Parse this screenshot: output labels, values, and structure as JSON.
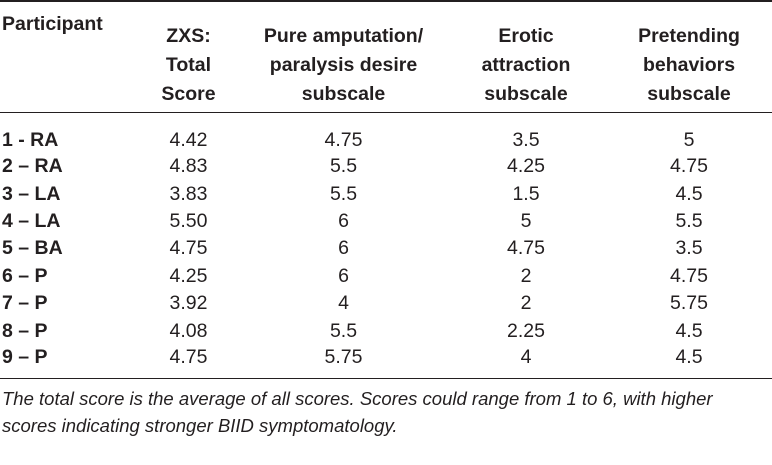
{
  "table": {
    "headers": [
      [
        "Participant"
      ],
      [
        "ZXS:",
        "Total",
        "Score"
      ],
      [
        "Pure amputation/",
        "paralysis desire",
        "subscale"
      ],
      [
        "Erotic",
        "attraction",
        "subscale"
      ],
      [
        "Pretending",
        "behaviors",
        "subscale"
      ]
    ],
    "rows": [
      {
        "participant": "1 - RA",
        "total": "4.42",
        "amputation": "4.75",
        "erotic": "3.5",
        "pretending": "5"
      },
      {
        "participant": "2 – RA",
        "total": "4.83",
        "amputation": "5.5",
        "erotic": "4.25",
        "pretending": "4.75"
      },
      {
        "participant": "3 – LA",
        "total": "3.83",
        "amputation": "5.5",
        "erotic": "1.5",
        "pretending": "4.5"
      },
      {
        "participant": "4 – LA",
        "total": "5.50",
        "amputation": "6",
        "erotic": "5",
        "pretending": "5.5"
      },
      {
        "participant": "5 – BA",
        "total": "4.75",
        "amputation": "6",
        "erotic": "4.75",
        "pretending": "3.5"
      },
      {
        "participant": "6 – P",
        "total": "4.25",
        "amputation": "6",
        "erotic": "2",
        "pretending": "4.75"
      },
      {
        "participant": "7 – P",
        "total": "3.92",
        "amputation": "4",
        "erotic": "2",
        "pretending": "5.75"
      },
      {
        "participant": "8 – P",
        "total": "4.08",
        "amputation": "5.5",
        "erotic": "2.25",
        "pretending": "4.5"
      },
      {
        "participant": "9 – P",
        "total": "4.75",
        "amputation": "5.75",
        "erotic": "4",
        "pretending": "4.5"
      }
    ]
  },
  "note": {
    "line1": "The total score is the average of all scores. Scores could range from 1 to 6, with higher",
    "line2": "scores indicating stronger BIID symptomatology."
  }
}
